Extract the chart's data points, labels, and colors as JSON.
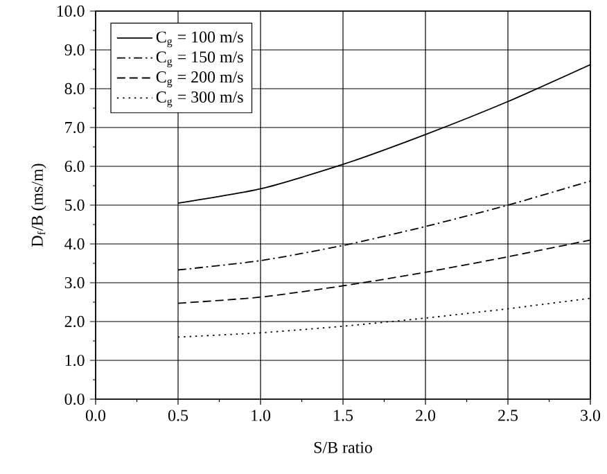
{
  "chart_data": {
    "type": "line",
    "xlabel": "S/B ratio",
    "ylabel": "D$_{f}$/B (ms/m)",
    "x": [
      0.5,
      1.0,
      1.5,
      2.0,
      2.5,
      3.0
    ],
    "series": [
      {
        "name": "C$_{g}$ = 100 m/s",
        "color": "#000000",
        "line_style": "solid",
        "values": [
          5.05,
          5.42,
          6.05,
          6.82,
          7.67,
          8.62
        ]
      },
      {
        "name": "C$_{g}$ = 150 m/s",
        "color": "#000000",
        "line_style": "dashdot",
        "values": [
          3.33,
          3.57,
          3.96,
          4.45,
          5.0,
          5.62
        ]
      },
      {
        "name": "C$_{g}$ = 200 m/s",
        "color": "#000000",
        "line_style": "dashed",
        "values": [
          2.47,
          2.63,
          2.92,
          3.27,
          3.67,
          4.1
        ]
      },
      {
        "name": "C$_{g}$ = 300 m/s",
        "color": "#000000",
        "line_style": "dotted",
        "values": [
          1.6,
          1.71,
          1.88,
          2.09,
          2.33,
          2.6
        ]
      }
    ],
    "xlim": [
      0,
      3
    ],
    "ylim": [
      0,
      10
    ],
    "xticks": [
      {
        "value": 0,
        "label": "0.0"
      },
      {
        "value": 0.5,
        "label": "0.5"
      },
      {
        "value": 1,
        "label": "1.0"
      },
      {
        "value": 1.5,
        "label": "1.5"
      },
      {
        "value": 2,
        "label": "2.0"
      },
      {
        "value": 2.5,
        "label": "2.5"
      },
      {
        "value": 3,
        "label": "3.0"
      }
    ],
    "yticks": [
      {
        "value": 0,
        "label": "0.0"
      },
      {
        "value": 1,
        "label": "1.0"
      },
      {
        "value": 2,
        "label": "2.0"
      },
      {
        "value": 3,
        "label": "3.0"
      },
      {
        "value": 4,
        "label": "4.0"
      },
      {
        "value": 5,
        "label": "5.0"
      },
      {
        "value": 6,
        "label": "6.0"
      },
      {
        "value": 7,
        "label": "7.0"
      },
      {
        "value": 8,
        "label": "8.0"
      },
      {
        "value": 9,
        "label": "9.0"
      },
      {
        "value": 10,
        "label": "10.0"
      }
    ],
    "grid": true,
    "legend": "top left",
    "marker": "none"
  }
}
